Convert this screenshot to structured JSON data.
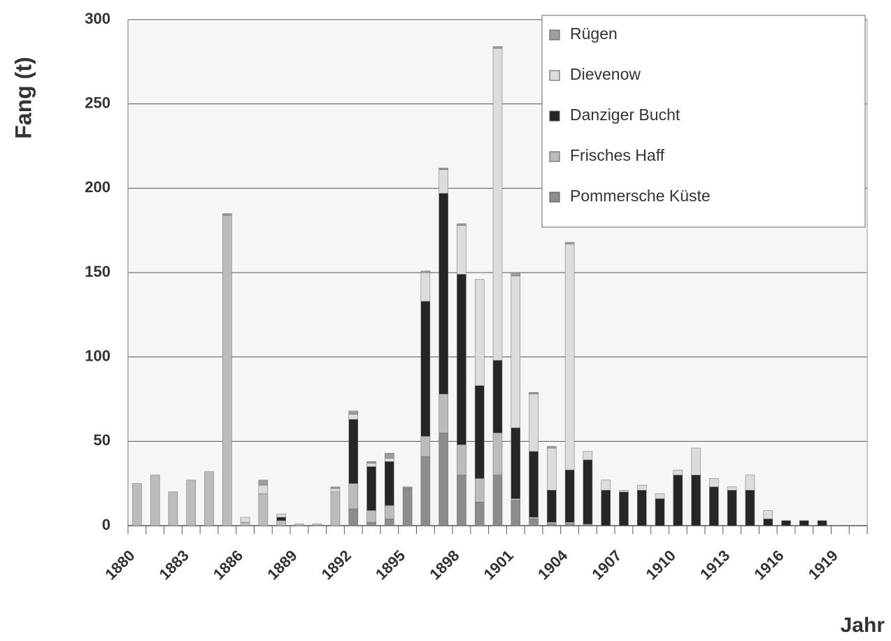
{
  "chart_data": {
    "type": "stacked_bar",
    "y_label": "Fang (t)",
    "x_label": "Jahr",
    "categories": [
      "1880",
      null,
      null,
      "1883",
      null,
      null,
      "1886",
      null,
      null,
      "1889",
      null,
      null,
      "1892",
      null,
      null,
      "1895",
      null,
      null,
      "1898",
      null,
      null,
      "1901",
      null,
      null,
      "1904",
      null,
      null,
      "1907",
      null,
      null,
      "1910",
      null,
      null,
      "1913",
      null,
      null,
      "1916",
      null,
      null,
      "1919",
      null
    ],
    "series": [
      {
        "name": "Pommersche Küste",
        "color": "#8c8c8c",
        "values": [
          0,
          0,
          0,
          0,
          0,
          0,
          0,
          0,
          0,
          0,
          0,
          0,
          10,
          2,
          4,
          22,
          41,
          55,
          30,
          14,
          30,
          15,
          4,
          1,
          1,
          1,
          0,
          0,
          0,
          0,
          0,
          0,
          0,
          0,
          0,
          0,
          0,
          0,
          0,
          null,
          null
        ]
      },
      {
        "name": "Frisches Haff",
        "color": "#bcbcbc",
        "values": [
          25,
          30,
          20,
          27,
          32,
          184,
          2,
          19,
          3,
          1,
          1,
          20,
          15,
          7,
          8,
          0,
          12,
          23,
          18,
          14,
          25,
          1,
          1,
          1,
          1,
          0,
          0,
          0,
          0,
          0,
          0,
          0,
          0,
          0,
          0,
          0,
          0,
          0,
          0,
          null,
          null
        ]
      },
      {
        "name": "Danziger Bucht",
        "color": "#262626",
        "values": [
          0,
          0,
          0,
          0,
          0,
          0,
          0,
          0,
          2,
          0,
          0,
          0,
          38,
          26,
          26,
          0,
          80,
          119,
          101,
          55,
          43,
          42,
          39,
          19,
          31,
          38,
          21,
          20,
          21,
          16,
          30,
          30,
          23,
          21,
          21,
          4,
          3,
          3,
          3,
          null,
          null
        ]
      },
      {
        "name": "Dievenow",
        "color": "#dcdcdc",
        "values": [
          0,
          0,
          0,
          0,
          0,
          0,
          3,
          5,
          2,
          0,
          0,
          2,
          3,
          2,
          2,
          0,
          17,
          14,
          29,
          63,
          185,
          90,
          34,
          25,
          134,
          5,
          6,
          1,
          3,
          3,
          3,
          16,
          5,
          2,
          9,
          5,
          0,
          0,
          0,
          null,
          null
        ]
      },
      {
        "name": "Rügen",
        "color": "#9e9e9e",
        "values": [
          0,
          0,
          0,
          0,
          0,
          1,
          0,
          3,
          0,
          0,
          0,
          1,
          2,
          1,
          3,
          1,
          1,
          1,
          1,
          0,
          1,
          2,
          1,
          1,
          1,
          0,
          0,
          0,
          0,
          0,
          0,
          0,
          0,
          0,
          0,
          0,
          0,
          0,
          0,
          null,
          null
        ]
      }
    ],
    "ylim": [
      0,
      300
    ],
    "yticks": [
      0,
      50,
      100,
      150,
      200,
      250,
      300
    ],
    "grid": true,
    "legend": "upper right"
  }
}
